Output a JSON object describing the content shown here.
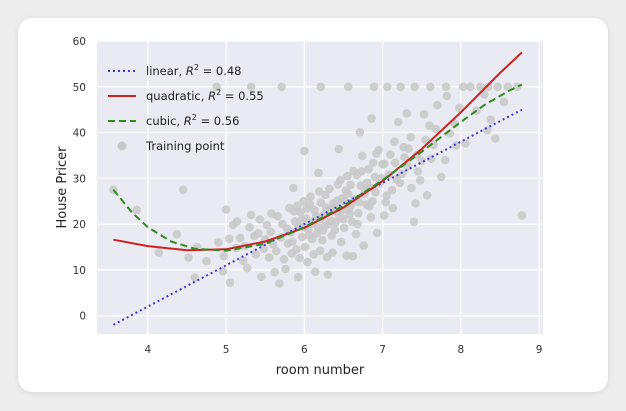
{
  "chart_data": {
    "type": "scatter",
    "xlabel": "room number",
    "ylabel": "House Pricer",
    "xlim": [
      3.35,
      9.05
    ],
    "ylim": [
      -4,
      60
    ],
    "xticks": [
      4,
      5,
      6,
      7,
      8,
      9
    ],
    "yticks": [
      0,
      10,
      20,
      30,
      40,
      50,
      60
    ],
    "grid": true,
    "legend_position": "top-left",
    "colors": {
      "background": "#eaeaf2",
      "grid": "#ffffff",
      "points": "#c8c8c8",
      "linear": "#3c3cdc",
      "quadratic": "#cc2222",
      "cubic": "#2e8b1e"
    },
    "legend": [
      {
        "kind": "linear",
        "pre": "linear, ",
        "r2": "= 0.48"
      },
      {
        "kind": "quadratic",
        "pre": "quadratic, ",
        "r2": "= 0.55"
      },
      {
        "kind": "cubic",
        "pre": "cubic, ",
        "r2": "= 0.56"
      },
      {
        "kind": "points",
        "pre": "Training point",
        "r2": ""
      }
    ],
    "series": [
      {
        "kind": "linear",
        "x": [
          3.56,
          4.0,
          4.5,
          5.0,
          5.5,
          6.0,
          6.5,
          7.0,
          7.5,
          8.0,
          8.5,
          8.78
        ],
        "y": [
          -2.0,
          2.0,
          6.5,
          11.0,
          15.5,
          20.0,
          24.5,
          29.0,
          33.5,
          38.0,
          42.5,
          45.0
        ]
      },
      {
        "kind": "quadratic",
        "x": [
          3.56,
          4.0,
          4.5,
          5.0,
          5.5,
          6.0,
          6.5,
          7.0,
          7.5,
          8.0,
          8.5,
          8.78
        ],
        "y": [
          16.6,
          15.2,
          14.3,
          14.5,
          16.2,
          19.2,
          23.6,
          29.4,
          36.4,
          44.4,
          53.0,
          57.5
        ]
      },
      {
        "kind": "cubic",
        "x": [
          3.56,
          3.8,
          4.0,
          4.3,
          4.6,
          5.0,
          5.5,
          6.0,
          6.5,
          7.0,
          7.5,
          8.0,
          8.3,
          8.6,
          8.78
        ],
        "y": [
          27.5,
          22.5,
          19.3,
          16.2,
          14.6,
          14.2,
          15.7,
          19.3,
          24.0,
          29.6,
          35.8,
          42.3,
          46.0,
          49.0,
          50.5
        ]
      }
    ],
    "points": [
      [
        3.56,
        27.5
      ],
      [
        3.86,
        23.1
      ],
      [
        4.14,
        13.8
      ],
      [
        4.37,
        17.8
      ],
      [
        4.52,
        12.7
      ],
      [
        4.63,
        15.0
      ],
      [
        4.88,
        50.0
      ],
      [
        4.9,
        16.0
      ],
      [
        4.97,
        13.0
      ],
      [
        5.0,
        23.2
      ],
      [
        5.13,
        14.8
      ],
      [
        5.32,
        22.0
      ],
      [
        5.41,
        18.0
      ],
      [
        5.57,
        18.3
      ],
      [
        5.62,
        9.5
      ],
      [
        5.84,
        13.6
      ],
      [
        5.88,
        20.6
      ],
      [
        5.93,
        19.5
      ],
      [
        5.97,
        17.2
      ],
      [
        6.02,
        21.2
      ],
      [
        6.05,
        18.9
      ],
      [
        6.09,
        20.1
      ],
      [
        6.13,
        23.1
      ],
      [
        6.17,
        19.4
      ],
      [
        6.21,
        24.7
      ],
      [
        6.23,
        16.5
      ],
      [
        6.25,
        22.0
      ],
      [
        6.31,
        20.0
      ],
      [
        6.38,
        23.8
      ],
      [
        6.42,
        25.1
      ],
      [
        6.45,
        21.5
      ],
      [
        6.52,
        25.0
      ],
      [
        6.55,
        30.5
      ],
      [
        6.6,
        24.2
      ],
      [
        6.68,
        20.0
      ],
      [
        6.72,
        28.4
      ],
      [
        6.78,
        27.5
      ],
      [
        6.85,
        21.5
      ],
      [
        6.95,
        36.2
      ],
      [
        7.02,
        33.2
      ],
      [
        7.15,
        38.0
      ],
      [
        7.25,
        31.0
      ],
      [
        7.42,
        24.5
      ],
      [
        7.5,
        33.8
      ],
      [
        7.6,
        41.5
      ],
      [
        7.82,
        48.0
      ],
      [
        7.92,
        42.0
      ],
      [
        8.03,
        50.0
      ],
      [
        8.25,
        50.0
      ],
      [
        8.38,
        42.8
      ],
      [
        8.72,
        50.0
      ],
      [
        8.78,
        21.9
      ],
      [
        5.32,
        50.0
      ],
      [
        5.71,
        50.0
      ],
      [
        6.21,
        50.0
      ],
      [
        6.56,
        50.0
      ],
      [
        6.89,
        50.0
      ],
      [
        7.06,
        50.0
      ],
      [
        7.23,
        50.0
      ],
      [
        7.41,
        50.0
      ],
      [
        7.61,
        50.0
      ],
      [
        7.81,
        50.0
      ],
      [
        8.12,
        50.0
      ],
      [
        8.35,
        50.0
      ],
      [
        8.47,
        50.0
      ],
      [
        5.14,
        20.6
      ],
      [
        5.22,
        12.0
      ],
      [
        5.36,
        17.4
      ],
      [
        5.48,
        14.6
      ],
      [
        5.52,
        19.8
      ],
      [
        5.6,
        15.6
      ],
      [
        5.66,
        21.7
      ],
      [
        5.7,
        17.1
      ],
      [
        5.74,
        12.3
      ],
      [
        5.78,
        19.0
      ],
      [
        5.81,
        23.5
      ],
      [
        5.85,
        16.2
      ],
      [
        5.9,
        14.5
      ],
      [
        5.95,
        22.6
      ],
      [
        5.99,
        25.0
      ],
      [
        6.01,
        15.0
      ],
      [
        6.04,
        11.7
      ],
      [
        6.07,
        24.4
      ],
      [
        6.1,
        16.7
      ],
      [
        6.12,
        13.4
      ],
      [
        6.15,
        21.8
      ],
      [
        6.19,
        27.1
      ],
      [
        6.2,
        14.2
      ],
      [
        6.24,
        18.6
      ],
      [
        6.27,
        26.4
      ],
      [
        6.29,
        12.8
      ],
      [
        6.33,
        22.9
      ],
      [
        6.35,
        17.5
      ],
      [
        6.4,
        20.4
      ],
      [
        6.43,
        28.7
      ],
      [
        6.47,
        16.1
      ],
      [
        6.49,
        23.0
      ],
      [
        6.51,
        19.2
      ],
      [
        6.56,
        26.6
      ],
      [
        6.58,
        22.2
      ],
      [
        6.63,
        31.6
      ],
      [
        6.66,
        17.8
      ],
      [
        6.7,
        24.8
      ],
      [
        6.74,
        34.9
      ],
      [
        6.8,
        29.1
      ],
      [
        6.83,
        23.9
      ],
      [
        6.88,
        33.4
      ],
      [
        6.91,
        27.0
      ],
      [
        6.98,
        30.1
      ],
      [
        7.05,
        26.2
      ],
      [
        7.1,
        35.2
      ],
      [
        7.18,
        29.8
      ],
      [
        7.2,
        42.3
      ],
      [
        7.28,
        34.6
      ],
      [
        7.33,
        36.5
      ],
      [
        7.37,
        27.9
      ],
      [
        7.45,
        31.5
      ],
      [
        7.53,
        44.0
      ],
      [
        7.65,
        37.3
      ],
      [
        7.7,
        46.0
      ],
      [
        7.75,
        30.3
      ],
      [
        7.86,
        39.8
      ],
      [
        7.98,
        45.4
      ],
      [
        8.06,
        37.6
      ],
      [
        8.2,
        44.8
      ],
      [
        8.3,
        48.3
      ],
      [
        8.44,
        38.7
      ],
      [
        8.55,
        46.7
      ],
      [
        8.6,
        50.0
      ],
      [
        4.45,
        27.5
      ],
      [
        4.6,
        8.3
      ],
      [
        4.75,
        11.9
      ],
      [
        4.96,
        9.7
      ],
      [
        5.05,
        7.2
      ],
      [
        5.27,
        10.4
      ],
      [
        5.45,
        8.5
      ],
      [
        5.55,
        12.7
      ],
      [
        5.68,
        7.0
      ],
      [
        5.76,
        10.2
      ],
      [
        5.86,
        27.9
      ],
      [
        5.92,
        8.4
      ],
      [
        6.0,
        36.0
      ],
      [
        6.14,
        9.6
      ],
      [
        6.18,
        31.2
      ],
      [
        6.3,
        9.0
      ],
      [
        6.36,
        13.8
      ],
      [
        6.44,
        36.4
      ],
      [
        6.54,
        13.1
      ],
      [
        6.62,
        13.0
      ],
      [
        6.71,
        40.1
      ],
      [
        6.76,
        15.3
      ],
      [
        6.86,
        43.1
      ],
      [
        6.93,
        18.1
      ],
      [
        7.02,
        21.9
      ],
      [
        7.13,
        23.5
      ],
      [
        7.31,
        44.2
      ],
      [
        7.4,
        20.5
      ],
      [
        7.57,
        26.3
      ],
      [
        7.8,
        34.0
      ],
      [
        7.94,
        37.2
      ],
      [
        8.34,
        40.5
      ],
      [
        5.04,
        16.8
      ],
      [
        5.09,
        19.8
      ],
      [
        5.18,
        17.0
      ],
      [
        5.24,
        15.2
      ],
      [
        5.3,
        19.3
      ],
      [
        5.38,
        13.4
      ],
      [
        5.43,
        21.0
      ],
      [
        5.5,
        16.7
      ],
      [
        5.58,
        22.3
      ],
      [
        5.64,
        14.1
      ],
      [
        5.72,
        20.0
      ],
      [
        5.79,
        15.8
      ],
      [
        5.83,
        18.2
      ],
      [
        5.87,
        22.8
      ],
      [
        5.91,
        24.0
      ],
      [
        5.94,
        12.6
      ],
      [
        5.96,
        20.9
      ],
      [
        6.0,
        19.3
      ],
      [
        6.03,
        23.4
      ],
      [
        6.06,
        17.6
      ],
      [
        6.08,
        26.0
      ],
      [
        6.11,
        20.6
      ],
      [
        6.16,
        18.0
      ],
      [
        6.22,
        21.1
      ],
      [
        6.26,
        19.6
      ],
      [
        6.28,
        23.6
      ],
      [
        6.32,
        27.7
      ],
      [
        6.34,
        20.8
      ],
      [
        6.37,
        24.5
      ],
      [
        6.39,
        18.7
      ],
      [
        6.41,
        22.6
      ],
      [
        6.46,
        29.6
      ],
      [
        6.48,
        25.6
      ],
      [
        6.5,
        21.1
      ],
      [
        6.53,
        27.3
      ],
      [
        6.57,
        23.2
      ],
      [
        6.59,
        28.6
      ],
      [
        6.61,
        20.5
      ],
      [
        6.64,
        25.4
      ],
      [
        6.67,
        30.7
      ],
      [
        6.69,
        22.4
      ],
      [
        6.73,
        31.5
      ],
      [
        6.77,
        26.6
      ],
      [
        6.79,
        24.3
      ],
      [
        6.82,
        32.0
      ],
      [
        6.84,
        28.0
      ],
      [
        6.87,
        25.0
      ],
      [
        6.9,
        30.3
      ],
      [
        6.92,
        35.4
      ],
      [
        6.96,
        28.9
      ],
      [
        7.0,
        33.1
      ],
      [
        7.04,
        24.8
      ],
      [
        7.08,
        30.8
      ],
      [
        7.12,
        27.4
      ],
      [
        7.16,
        33.4
      ],
      [
        7.22,
        29.0
      ],
      [
        7.27,
        36.8
      ],
      [
        7.32,
        32.7
      ],
      [
        7.36,
        39.0
      ],
      [
        7.44,
        35.1
      ],
      [
        7.48,
        29.6
      ],
      [
        7.55,
        38.4
      ],
      [
        7.62,
        34.3
      ],
      [
        7.68,
        40.8
      ]
    ]
  }
}
